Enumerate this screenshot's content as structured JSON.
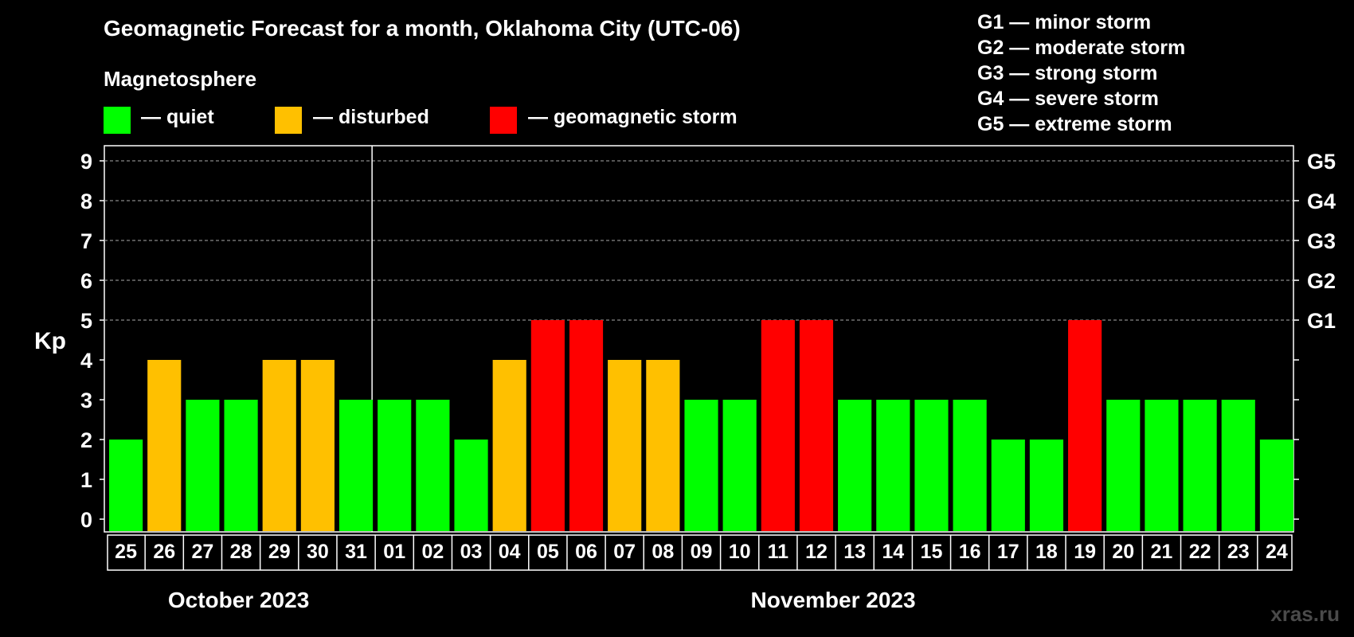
{
  "title": "Geomagnetic Forecast for a month, Oklahoma City (UTC-06)",
  "legend": {
    "heading": "Magnetosphere",
    "items": [
      {
        "label": "— quiet",
        "color": "#00ff00"
      },
      {
        "label": "— disturbed",
        "color": "#ffc000"
      },
      {
        "label": "— geomagnetic storm",
        "color": "#ff0000"
      }
    ]
  },
  "storm_levels": [
    "G1 — minor storm",
    "G2 — moderate storm",
    "G3 — strong storm",
    "G4 — severe storm",
    "G5 — extreme storm"
  ],
  "watermark": "xras.ru",
  "colors": {
    "quiet": "#00ff00",
    "disturbed": "#ffc000",
    "storm": "#ff0000",
    "background": "#000000"
  },
  "chart_data": {
    "type": "bar",
    "ylabel": "Kp",
    "ylim": [
      0,
      9
    ],
    "yticks": [
      0,
      1,
      2,
      3,
      4,
      5,
      6,
      7,
      8,
      9
    ],
    "right_axis_labels": {
      "5": "G1",
      "6": "G2",
      "7": "G3",
      "8": "G4",
      "9": "G5"
    },
    "grid": true,
    "categories": [
      "25",
      "26",
      "27",
      "28",
      "29",
      "30",
      "31",
      "01",
      "02",
      "03",
      "04",
      "05",
      "06",
      "07",
      "08",
      "09",
      "10",
      "11",
      "12",
      "13",
      "14",
      "15",
      "16",
      "17",
      "18",
      "19",
      "20",
      "21",
      "22",
      "23",
      "24"
    ],
    "values": [
      2,
      4,
      3,
      3,
      4,
      4,
      3,
      3,
      3,
      2,
      4,
      5,
      5,
      4,
      4,
      3,
      3,
      5,
      5,
      3,
      3,
      3,
      3,
      2,
      2,
      5,
      3,
      3,
      3,
      3,
      2
    ],
    "month_groups": [
      {
        "label": "October 2023",
        "count": 7
      },
      {
        "label": "November 2023",
        "count": 24
      }
    ]
  }
}
